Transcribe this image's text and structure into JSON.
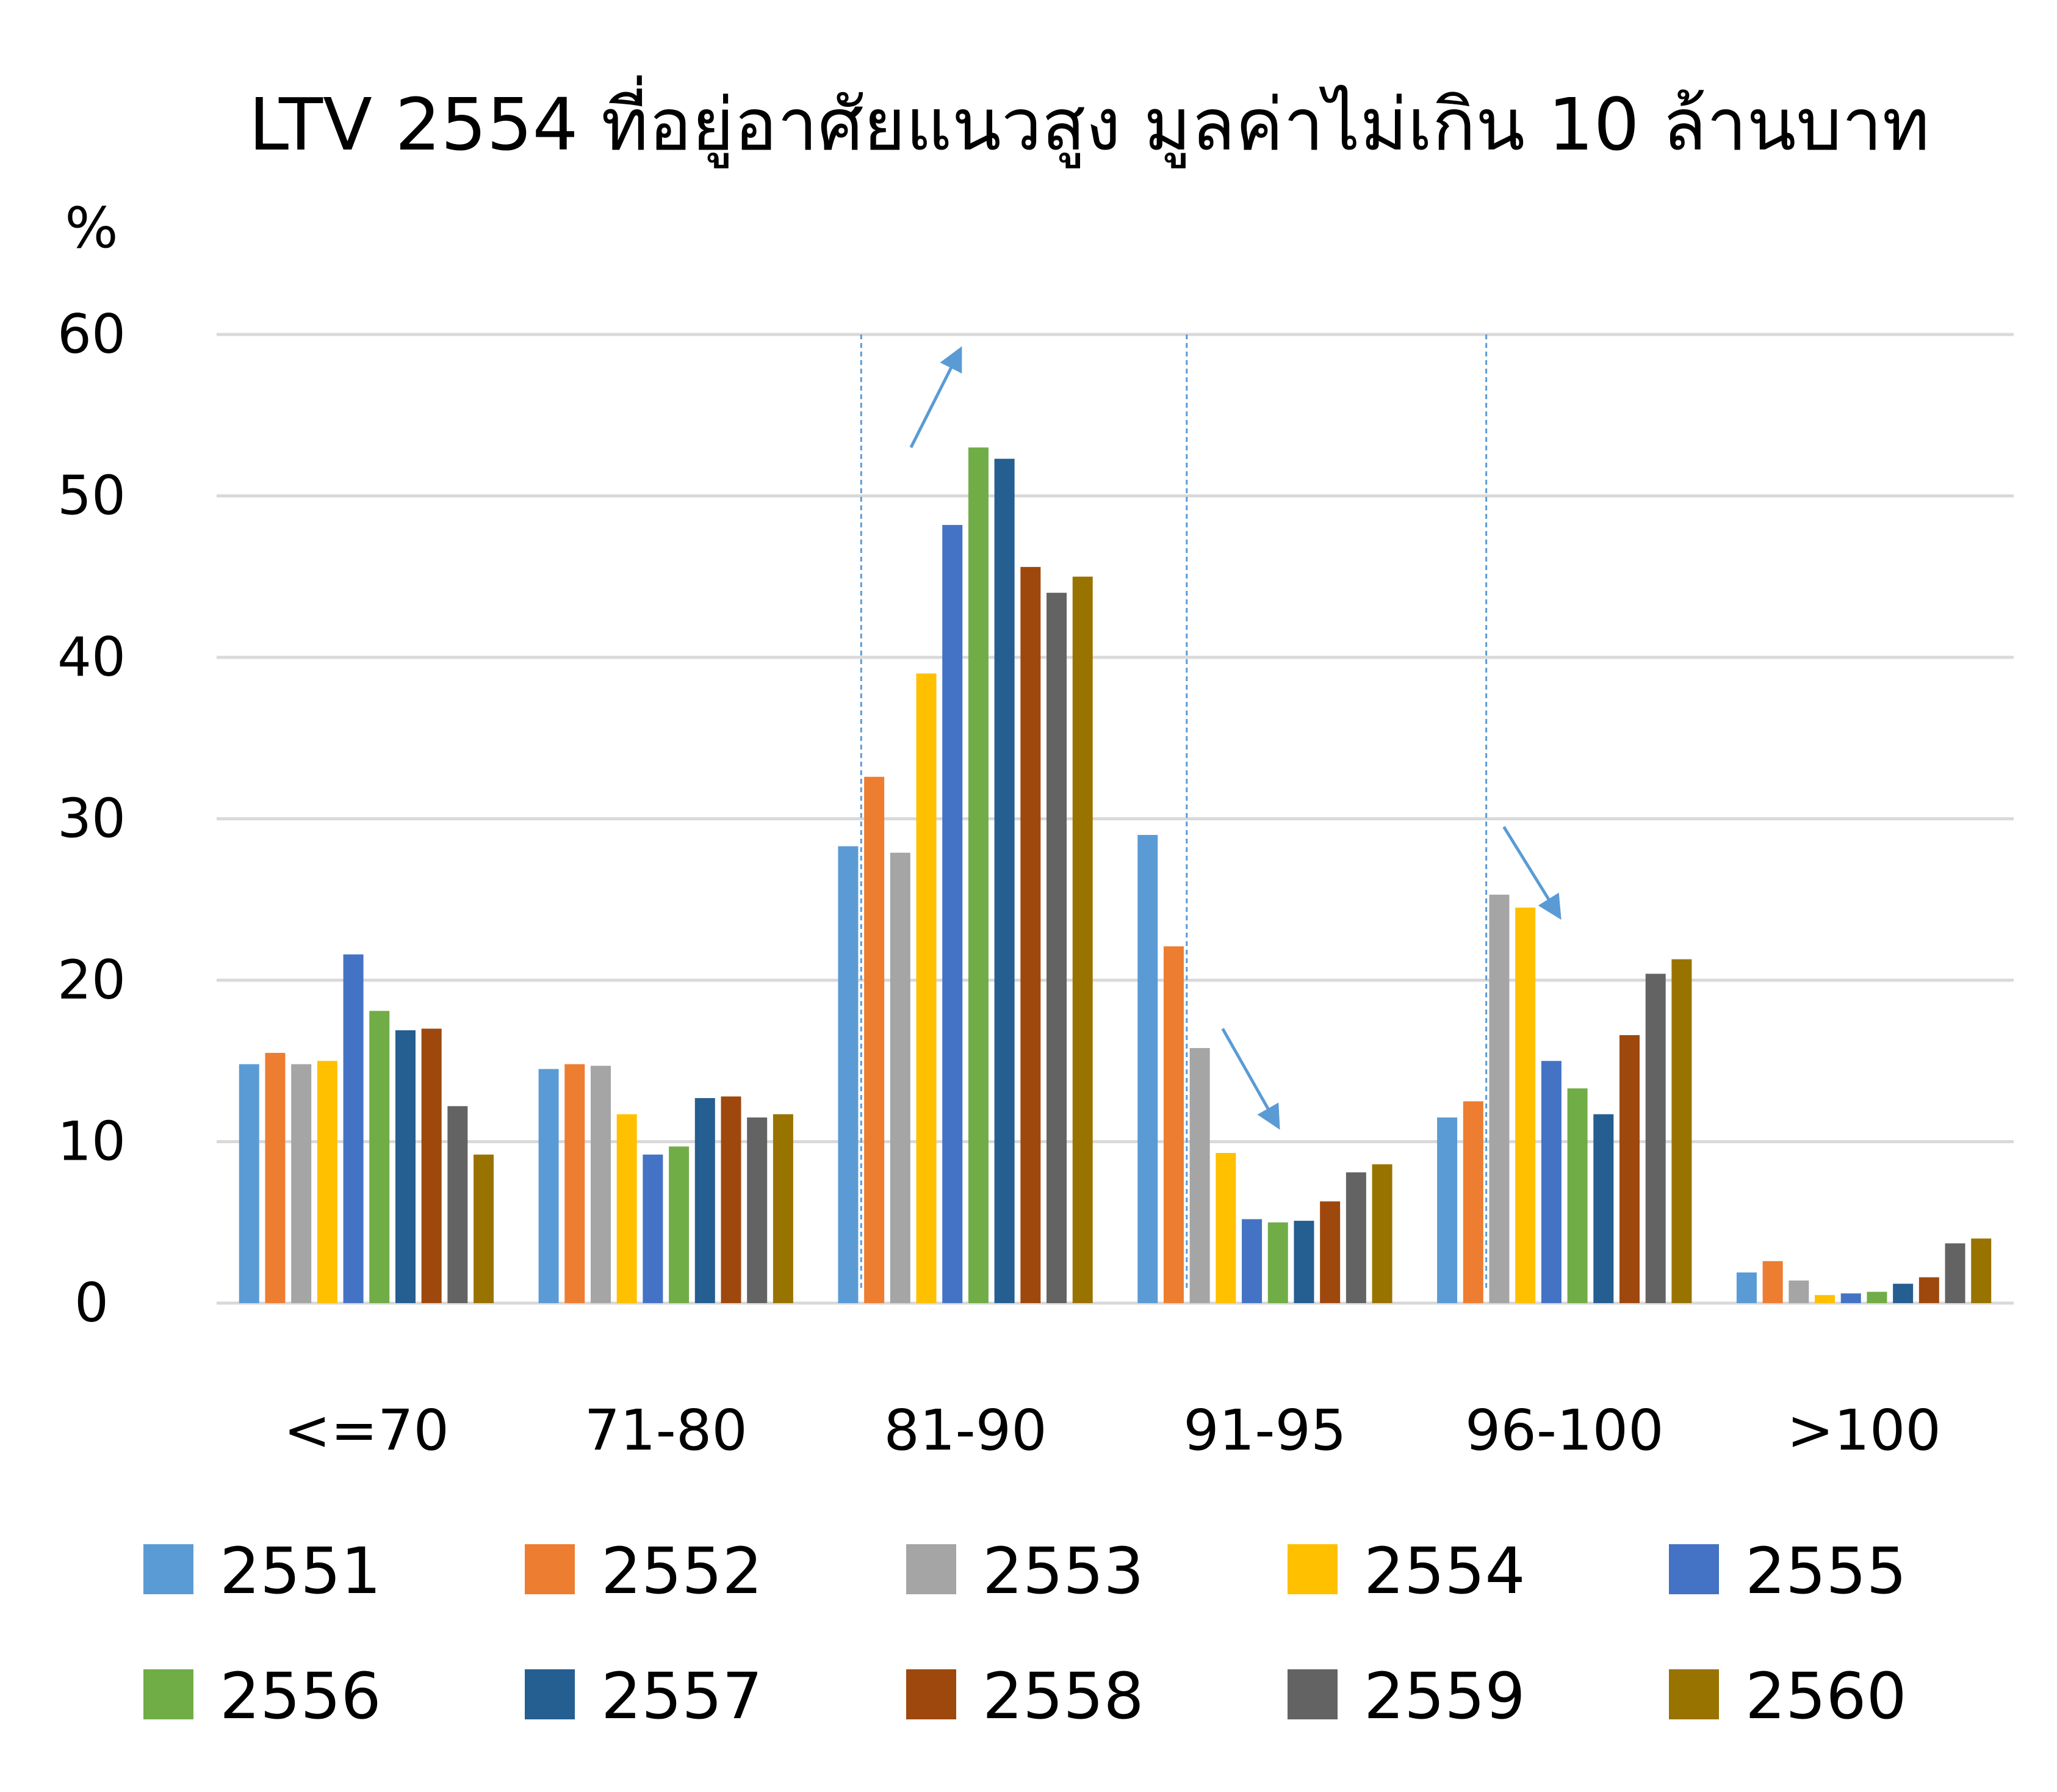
{
  "chart_data": {
    "type": "bar",
    "title": "LTV 2554 ที่อยู่อาศัยแนวสูง มูลค่าไม่เกิน 10 ล้านบาท",
    "ylabel": "%",
    "xlabel": "",
    "ylim": [
      0,
      60
    ],
    "yticks": [
      "0",
      "10",
      "20",
      "30",
      "40",
      "50",
      "60"
    ],
    "grid": true,
    "legend_position": "bottom",
    "categories": [
      "<=70",
      "71-80",
      "81-90",
      "91-95",
      "96-100",
      ">100"
    ],
    "series": [
      {
        "name": "2551",
        "color": "#5B9BD5",
        "values": [
          14.8,
          14.5,
          28.3,
          29.0,
          11.5,
          1.9
        ]
      },
      {
        "name": "2552",
        "color": "#ED7D31",
        "values": [
          15.5,
          14.8,
          32.6,
          22.1,
          12.5,
          2.6
        ]
      },
      {
        "name": "2553",
        "color": "#A5A5A5",
        "values": [
          14.8,
          14.7,
          27.9,
          15.8,
          25.3,
          1.4
        ]
      },
      {
        "name": "2554",
        "color": "#FFC000",
        "values": [
          15.0,
          11.7,
          39.0,
          9.3,
          24.5,
          0.5
        ]
      },
      {
        "name": "2555",
        "color": "#4472C4",
        "values": [
          21.6,
          9.2,
          48.2,
          5.2,
          15.0,
          0.6
        ]
      },
      {
        "name": "2556",
        "color": "#70AD47",
        "values": [
          18.1,
          9.7,
          53.0,
          5.0,
          13.3,
          0.7
        ]
      },
      {
        "name": "2557",
        "color": "#255E91",
        "values": [
          16.9,
          12.7,
          52.3,
          5.1,
          11.7,
          1.2
        ]
      },
      {
        "name": "2558",
        "color": "#9E480E",
        "values": [
          17.0,
          12.8,
          45.6,
          6.3,
          16.6,
          1.6
        ]
      },
      {
        "name": "2559",
        "color": "#636363",
        "values": [
          12.2,
          11.5,
          44.0,
          8.1,
          20.4,
          3.7
        ]
      },
      {
        "name": "2560",
        "color": "#997300",
        "values": [
          9.2,
          11.7,
          45.0,
          8.6,
          21.3,
          4.0
        ]
      }
    ],
    "annotations": [
      {
        "type": "arrow",
        "direction": "up",
        "category": "81-90"
      },
      {
        "type": "arrow",
        "direction": "down",
        "category": "91-95"
      },
      {
        "type": "arrow",
        "direction": "down",
        "category": "96-100"
      },
      {
        "type": "dashed-line",
        "between": [
          "2551",
          "2552"
        ],
        "category": "81-90"
      },
      {
        "type": "dashed-line",
        "between": [
          "2552",
          "2553"
        ],
        "category": "91-95"
      },
      {
        "type": "dashed-line",
        "between": [
          "2552",
          "2553"
        ],
        "category": "96-100"
      }
    ]
  },
  "colors": {
    "grid": "#D9D9D9",
    "annotation": "#5B9BD5",
    "background": "#FFFFFF"
  }
}
